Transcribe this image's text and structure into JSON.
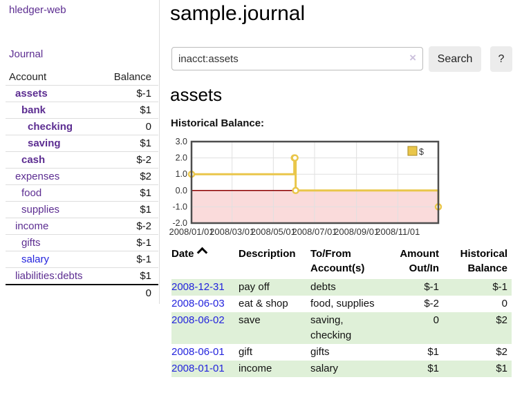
{
  "colors": {
    "purple_link": "#5c2d91",
    "blue_link": "#2323dd",
    "negative_strong": "#7c1313",
    "negative_soft": "#b06a6a",
    "row_green": "#dff0d8",
    "chart_gold": "#e9c64a",
    "chart_gold_border": "#a98b26",
    "chart_negative_fill": "#fadbdb",
    "chart_zero_line": "#8b0000",
    "chart_border": "#4d4d4d",
    "chart_grid": "#e0e0e0"
  },
  "sidebar": {
    "app_title": "hledger-web",
    "journal_link": "Journal",
    "accounts_table": {
      "account_header": "Account",
      "balance_header": "Balance",
      "rows": [
        {
          "account": "assets",
          "balance": "$-1",
          "level": 1,
          "bold": true,
          "balance_style": "negative"
        },
        {
          "account": "bank",
          "balance": "$1",
          "level": 2,
          "bold": true,
          "balance_style": "normal"
        },
        {
          "account": "checking",
          "balance": "0",
          "level": 3,
          "bold": true,
          "balance_style": "normal"
        },
        {
          "account": "saving",
          "balance": "$1",
          "level": 3,
          "bold": true,
          "balance_style": "normal"
        },
        {
          "account": "cash",
          "balance": "$-2",
          "level": 2,
          "bold": true,
          "balance_style": "negative"
        },
        {
          "account": "expenses",
          "balance": "$2",
          "level": 1,
          "bold": false,
          "balance_style": "normal"
        },
        {
          "account": "food",
          "balance": "$1",
          "level": 2,
          "bold": false,
          "balance_style": "normal"
        },
        {
          "account": "supplies",
          "balance": "$1",
          "level": 2,
          "bold": false,
          "balance_style": "normal"
        },
        {
          "account": "income",
          "balance": "$-2",
          "level": 1,
          "bold": false,
          "balance_style": "negative-soft"
        },
        {
          "account": "gifts",
          "balance": "$-1",
          "level": 2,
          "bold": false,
          "balance_style": "negative-soft"
        },
        {
          "account": "salary",
          "balance": "$-1",
          "level": 2,
          "bold": false,
          "balance_style": "negative-soft",
          "link_style": "blue"
        },
        {
          "account": "liabilities:debts",
          "balance": "$1",
          "level": 1,
          "bold": false,
          "balance_style": "normal"
        }
      ],
      "total": "0"
    }
  },
  "main": {
    "title": "sample.journal",
    "search": {
      "value": "inacct:assets",
      "clear_icon": "×",
      "search_button": "Search",
      "help_button": "?"
    },
    "account_heading": "assets",
    "section_label": "Historical Balance:"
  },
  "chart_data": {
    "type": "line",
    "title": "Historical Balance",
    "step": true,
    "legend": [
      {
        "label": "$",
        "color": "#e9c64a"
      }
    ],
    "legend_position": "top-right",
    "x_ticks": [
      "2008/01/01",
      "2008/03/01",
      "2008/05/01",
      "2008/07/01",
      "2008/09/01",
      "2008/11/01"
    ],
    "y_ticks": [
      3.0,
      2.0,
      1.0,
      0.0,
      -1.0,
      -2.0
    ],
    "ylim": [
      -2.0,
      3.0
    ],
    "xlim": [
      "2008-01-01",
      "2008-12-31"
    ],
    "points": [
      {
        "date": "2008-01-01",
        "value": 1
      },
      {
        "date": "2008-06-01",
        "value": 2
      },
      {
        "date": "2008-06-02",
        "value": 2
      },
      {
        "date": "2008-06-03",
        "value": 0
      },
      {
        "date": "2008-12-31",
        "value": -1
      }
    ],
    "negative_region_shaded": true,
    "grid": true
  },
  "register": {
    "headers": {
      "date": "Date",
      "description": "Description",
      "accounts": "To/From Account(s)",
      "amount": "Amount Out/In",
      "balance": "Historical Balance"
    },
    "sort": "ascending",
    "rows": [
      {
        "date": "2008-12-31",
        "description": "pay off",
        "accounts": "debts",
        "amount": "$-1",
        "amount_negative": true,
        "balance": "$-1",
        "balance_negative": true
      },
      {
        "date": "2008-06-03",
        "description": "eat & shop",
        "accounts": "food, supplies",
        "amount": "$-2",
        "amount_negative": true,
        "balance": "0",
        "balance_negative": false
      },
      {
        "date": "2008-06-02",
        "description": "save",
        "accounts": "saving, checking",
        "amount": "0",
        "amount_negative": false,
        "balance": "$2",
        "balance_negative": false
      },
      {
        "date": "2008-06-01",
        "description": "gift",
        "accounts": "gifts",
        "amount": "$1",
        "amount_negative": false,
        "balance": "$2",
        "balance_negative": false
      },
      {
        "date": "2008-01-01",
        "description": "income",
        "accounts": "salary",
        "amount": "$1",
        "amount_negative": false,
        "balance": "$1",
        "balance_negative": false
      }
    ]
  }
}
